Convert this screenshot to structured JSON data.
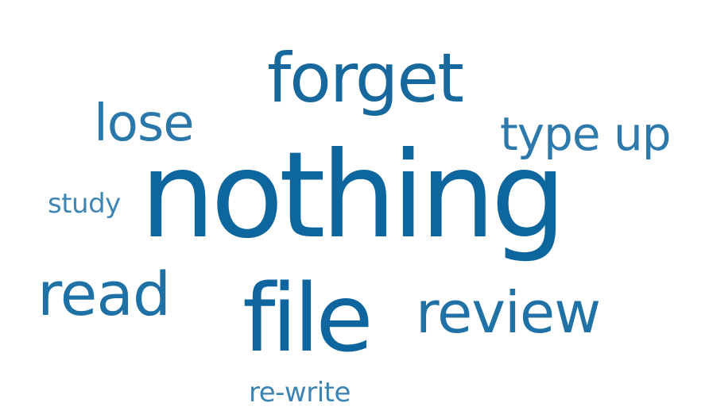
{
  "word_cloud": {
    "words": [
      {
        "text": "forget"
      },
      {
        "text": "lose"
      },
      {
        "text": "type up"
      },
      {
        "text": "study"
      },
      {
        "text": "nothing"
      },
      {
        "text": "read"
      },
      {
        "text": "file"
      },
      {
        "text": "review"
      },
      {
        "text": "re-write"
      }
    ],
    "colors": {
      "primary": "#0e669e",
      "secondary": "#2a78aa",
      "light": "#3f86b4",
      "background": "#ffffff"
    }
  }
}
